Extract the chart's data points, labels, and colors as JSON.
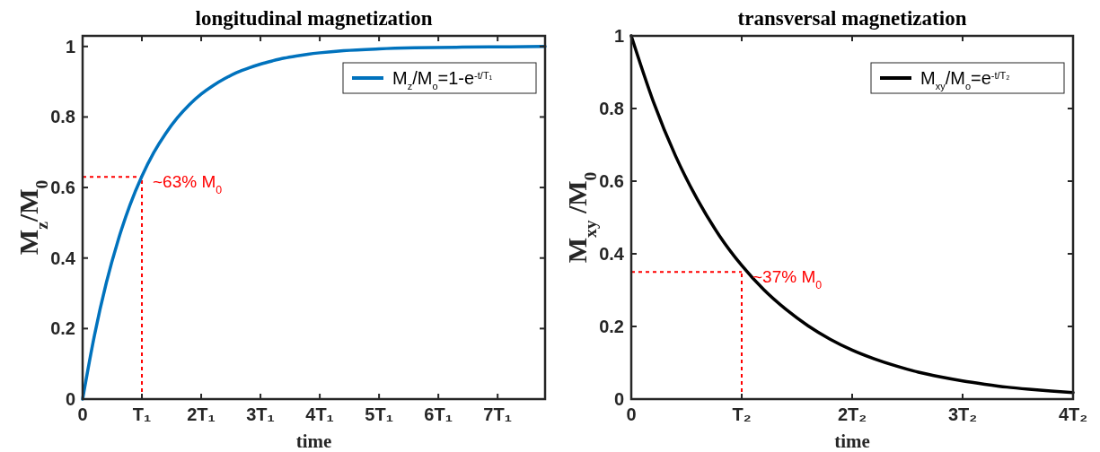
{
  "chart_data": [
    {
      "type": "line",
      "title": "longitudinal magnetization",
      "xlabel": "time",
      "ylabel": "M$_{z}$/M$_{0}$",
      "xlim": [
        0,
        7.8
      ],
      "xticks": [
        0,
        {
          "value": 1,
          "label": "T₁"
        },
        {
          "value": 2,
          "label": "2T₁"
        },
        {
          "value": 3,
          "label": "3T₁"
        },
        {
          "value": 4,
          "label": "4T₁"
        },
        {
          "value": 5,
          "label": "5T₁"
        },
        {
          "value": 6,
          "label": "6T₁"
        },
        {
          "value": 7,
          "label": "7T₁"
        }
      ],
      "ylim": [
        0,
        1.03
      ],
      "yticks": [
        0,
        0.2,
        0.4,
        0.6,
        0.8,
        1
      ],
      "series": [
        {
          "name": "M$_{z}$/M$_{o}$=1-e$^{-t/T₁}$",
          "color": "#0072bd",
          "x": [
            0,
            0.2,
            0.4,
            0.6,
            0.8,
            1.0,
            1.2,
            1.4,
            1.6,
            1.8,
            2.0,
            2.2,
            2.4,
            2.6,
            2.8,
            3.0,
            3.2,
            3.4,
            3.6,
            3.8,
            4.0,
            4.4,
            5.0,
            5.6,
            6.4,
            7.2,
            7.8
          ],
          "values": [
            0,
            0.181,
            0.33,
            0.451,
            0.551,
            0.632,
            0.699,
            0.753,
            0.798,
            0.835,
            0.865,
            0.889,
            0.909,
            0.926,
            0.939,
            0.95,
            0.959,
            0.967,
            0.973,
            0.978,
            0.982,
            0.988,
            0.993,
            0.996,
            0.998,
            0.999,
            1.0
          ]
        }
      ],
      "ref_lines": [
        {
          "axis": "x",
          "value": 1,
          "color": "#ff0000",
          "line_style": "dashed"
        },
        {
          "axis": "y",
          "value": 0.63,
          "color": "#ff0000",
          "line_style": "dashed"
        }
      ],
      "annotations": [
        {
          "text": "~63% M$_{0}$",
          "x": 1,
          "y": 0.63
        }
      ],
      "legend": "top right",
      "grid": false,
      "marker": "none",
      "line_style": "solid"
    },
    {
      "type": "line",
      "title": "transversal magnetization",
      "xlabel": "time",
      "ylabel": "M$_{xy}$ /M$_{0}$",
      "xlim": [
        0,
        4
      ],
      "xticks": [
        0,
        {
          "value": 1,
          "label": "T₂"
        },
        {
          "value": 2,
          "label": "2T₂"
        },
        {
          "value": 3,
          "label": "3T₂"
        },
        {
          "value": 4,
          "label": "4T₂"
        }
      ],
      "ylim": [
        0,
        1
      ],
      "yticks": [
        0,
        0.2,
        0.4,
        0.6,
        0.8,
        1
      ],
      "series": [
        {
          "name": "M$_{xy}$/M$_{o}$=e$^{-t/T₂}$",
          "color": "#000000",
          "x": [
            0,
            0.2,
            0.4,
            0.6,
            0.8,
            1.0,
            1.2,
            1.4,
            1.6,
            1.8,
            2.0,
            2.2,
            2.4,
            2.6,
            2.8,
            3.0,
            3.2,
            3.4,
            3.6,
            3.8,
            4.0
          ],
          "values": [
            1.0,
            0.819,
            0.67,
            0.549,
            0.449,
            0.368,
            0.301,
            0.247,
            0.202,
            0.165,
            0.135,
            0.111,
            0.091,
            0.074,
            0.061,
            0.05,
            0.041,
            0.033,
            0.027,
            0.022,
            0.018
          ]
        }
      ],
      "ref_lines": [
        {
          "axis": "x",
          "value": 1,
          "color": "#ff0000",
          "line_style": "dashed"
        },
        {
          "axis": "y",
          "value": 0.35,
          "color": "#ff0000",
          "line_style": "dashed"
        }
      ],
      "annotations": [
        {
          "text": "~37% M$_{0}$",
          "x": 1,
          "y": 0.35
        }
      ],
      "legend": "top right",
      "grid": false,
      "marker": "none",
      "line_style": "solid"
    }
  ]
}
